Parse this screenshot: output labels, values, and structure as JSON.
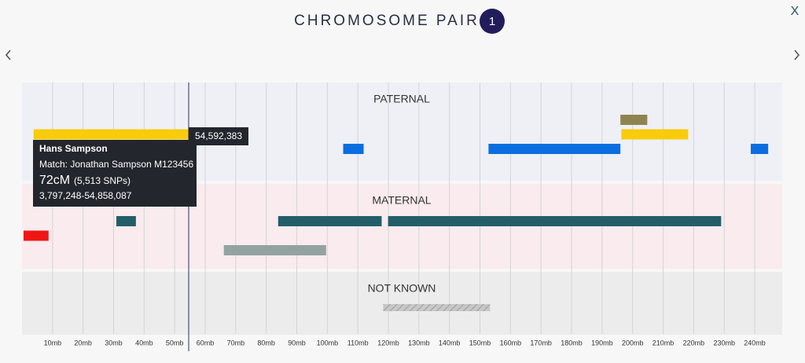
{
  "header": {
    "title": "CHROMOSOME PAIR",
    "pair": "1",
    "close": "X"
  },
  "axis": {
    "xlim": [
      0,
      249
    ],
    "xticks": [
      {
        "value": 10,
        "label": "10mb"
      },
      {
        "value": 20,
        "label": "20mb"
      },
      {
        "value": 30,
        "label": "30mb"
      },
      {
        "value": 40,
        "label": "40mb"
      },
      {
        "value": 50,
        "label": "50mb"
      },
      {
        "value": 60,
        "label": "60mb"
      },
      {
        "value": 70,
        "label": "70mb"
      },
      {
        "value": 80,
        "label": "80mb"
      },
      {
        "value": 90,
        "label": "90mb"
      },
      {
        "value": 100,
        "label": "100mb"
      },
      {
        "value": 110,
        "label": "110mb"
      },
      {
        "value": 120,
        "label": "120mb"
      },
      {
        "value": 130,
        "label": "130mb"
      },
      {
        "value": 140,
        "label": "140mb"
      },
      {
        "value": 150,
        "label": "150mb"
      },
      {
        "value": 160,
        "label": "160mb"
      },
      {
        "value": 170,
        "label": "170mb"
      },
      {
        "value": 180,
        "label": "180mb"
      },
      {
        "value": 190,
        "label": "190mb"
      },
      {
        "value": 200,
        "label": "200mb"
      },
      {
        "value": 210,
        "label": "210mb"
      },
      {
        "value": 220,
        "label": "220mb"
      },
      {
        "value": 230,
        "label": "230mb"
      },
      {
        "value": 240,
        "label": "240mb"
      }
    ]
  },
  "tracks": [
    {
      "label": "PATERNAL",
      "background": "#eef0f5",
      "rows": [
        [
          {
            "start": 196.0,
            "end": 204.8,
            "color": "#8f8450"
          }
        ],
        [
          {
            "start": 3.8,
            "end": 54.9,
            "color": "#f8cc0b"
          },
          {
            "start": 196.3,
            "end": 218.2,
            "color": "#f8cc0b"
          }
        ],
        [
          {
            "start": 105.2,
            "end": 111.9,
            "color": "#0a6ee0"
          },
          {
            "start": 152.8,
            "end": 196.0,
            "color": "#0a6ee0"
          },
          {
            "start": 238.7,
            "end": 244.4,
            "color": "#0a6ee0"
          }
        ]
      ]
    },
    {
      "label": "MATERNAL",
      "background": "#f9ebee",
      "rows": [
        [
          {
            "start": 30.9,
            "end": 37.3,
            "color": "#235e68"
          },
          {
            "start": 83.9,
            "end": 117.8,
            "color": "#235e68"
          },
          {
            "start": 119.9,
            "end": 229.0,
            "color": "#235e68"
          }
        ],
        [
          {
            "start": 0.5,
            "end": 8.7,
            "color": "#f01515"
          }
        ],
        [
          {
            "start": 66.1,
            "end": 99.6,
            "color": "#92a3a0"
          }
        ]
      ]
    },
    {
      "label": "NOT KNOWN",
      "background": "#ececec",
      "rows": [
        [
          {
            "start": 118.3,
            "end": 153.3,
            "color": "hatch"
          }
        ]
      ]
    }
  ],
  "cursor": {
    "value": 54.592383,
    "label": "54,592,383"
  },
  "tooltip": {
    "name": "Hans Sampson",
    "match": "Match: Jonathan Sampson M123456",
    "cm": "72cM",
    "snps": "(5,513 SNPs)",
    "range": "3,797,248-54,858,087"
  }
}
